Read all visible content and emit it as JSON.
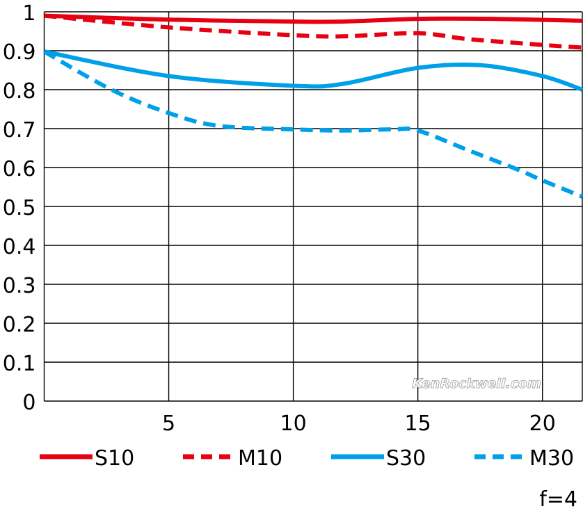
{
  "chart_data": {
    "type": "line",
    "xlim": [
      0,
      21.6
    ],
    "ylim": [
      0,
      1
    ],
    "x_ticks": [
      "5",
      "10",
      "15",
      "20"
    ],
    "y_ticks": [
      "0",
      "0.1",
      "0.2",
      "0.3",
      "0.4",
      "0.5",
      "0.6",
      "0.7",
      "0.8",
      "0.9",
      "1"
    ],
    "grid": true,
    "legend_position": "bottom",
    "annotation": "f=4",
    "watermark": "KenRockwell.com",
    "series": [
      {
        "name": "S10",
        "color": "#e60012",
        "dashed": false,
        "x": [
          0,
          5,
          10,
          12,
          15,
          18,
          21.6
        ],
        "y": [
          0.99,
          0.98,
          0.975,
          0.975,
          0.982,
          0.982,
          0.977
        ]
      },
      {
        "name": "M10",
        "color": "#e60012",
        "dashed": true,
        "x": [
          0,
          5,
          10,
          12,
          15,
          17,
          20,
          21.6
        ],
        "y": [
          0.99,
          0.96,
          0.94,
          0.937,
          0.945,
          0.93,
          0.915,
          0.908
        ]
      },
      {
        "name": "S30",
        "color": "#00a0e9",
        "dashed": false,
        "x": [
          0,
          5,
          10,
          12,
          15,
          17.5,
          20,
          21.6
        ],
        "y": [
          0.898,
          0.835,
          0.81,
          0.815,
          0.856,
          0.863,
          0.835,
          0.8
        ]
      },
      {
        "name": "M30",
        "color": "#00a0e9",
        "dashed": true,
        "x": [
          0,
          2.7,
          5,
          7,
          10,
          12,
          14,
          15,
          17,
          19,
          20,
          21.6
        ],
        "y": [
          0.898,
          0.8,
          0.74,
          0.707,
          0.698,
          0.695,
          0.698,
          0.695,
          0.645,
          0.595,
          0.567,
          0.525
        ]
      }
    ]
  }
}
